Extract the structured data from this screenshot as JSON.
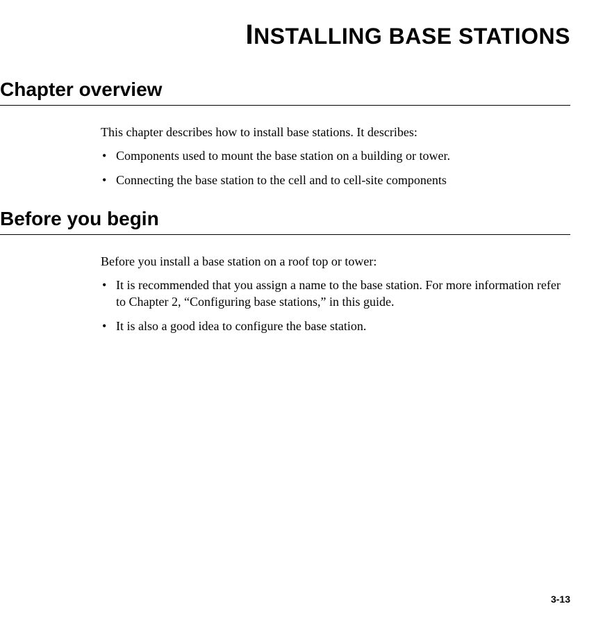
{
  "chapter_title_first": "I",
  "chapter_title_rest": "NSTALLING BASE STATIONS",
  "sections": [
    {
      "heading": "Chapter overview",
      "intro": "This chapter describes how to install base stations. It describes:",
      "bullets": [
        "Components used to mount the base station on a building or tower.",
        "Connecting the base station to the cell and to cell-site components"
      ]
    },
    {
      "heading": "Before you begin",
      "intro": "Before you install a base station on a roof top or tower:",
      "bullets": [
        "It is recommended that you assign a name to the base station. For more information refer to Chapter 2, “Configuring base stations,” in this guide.",
        "It is also a good idea to configure the base station."
      ]
    }
  ],
  "page_number": "3-13",
  "colors": {
    "text": "#000000",
    "background": "#ffffff",
    "rule": "#000000"
  },
  "typography": {
    "title_font": "Arial",
    "title_size_pt": 32,
    "heading_font": "Arial",
    "heading_size_pt": 28,
    "body_font": "Georgia",
    "body_size_pt": 18
  }
}
